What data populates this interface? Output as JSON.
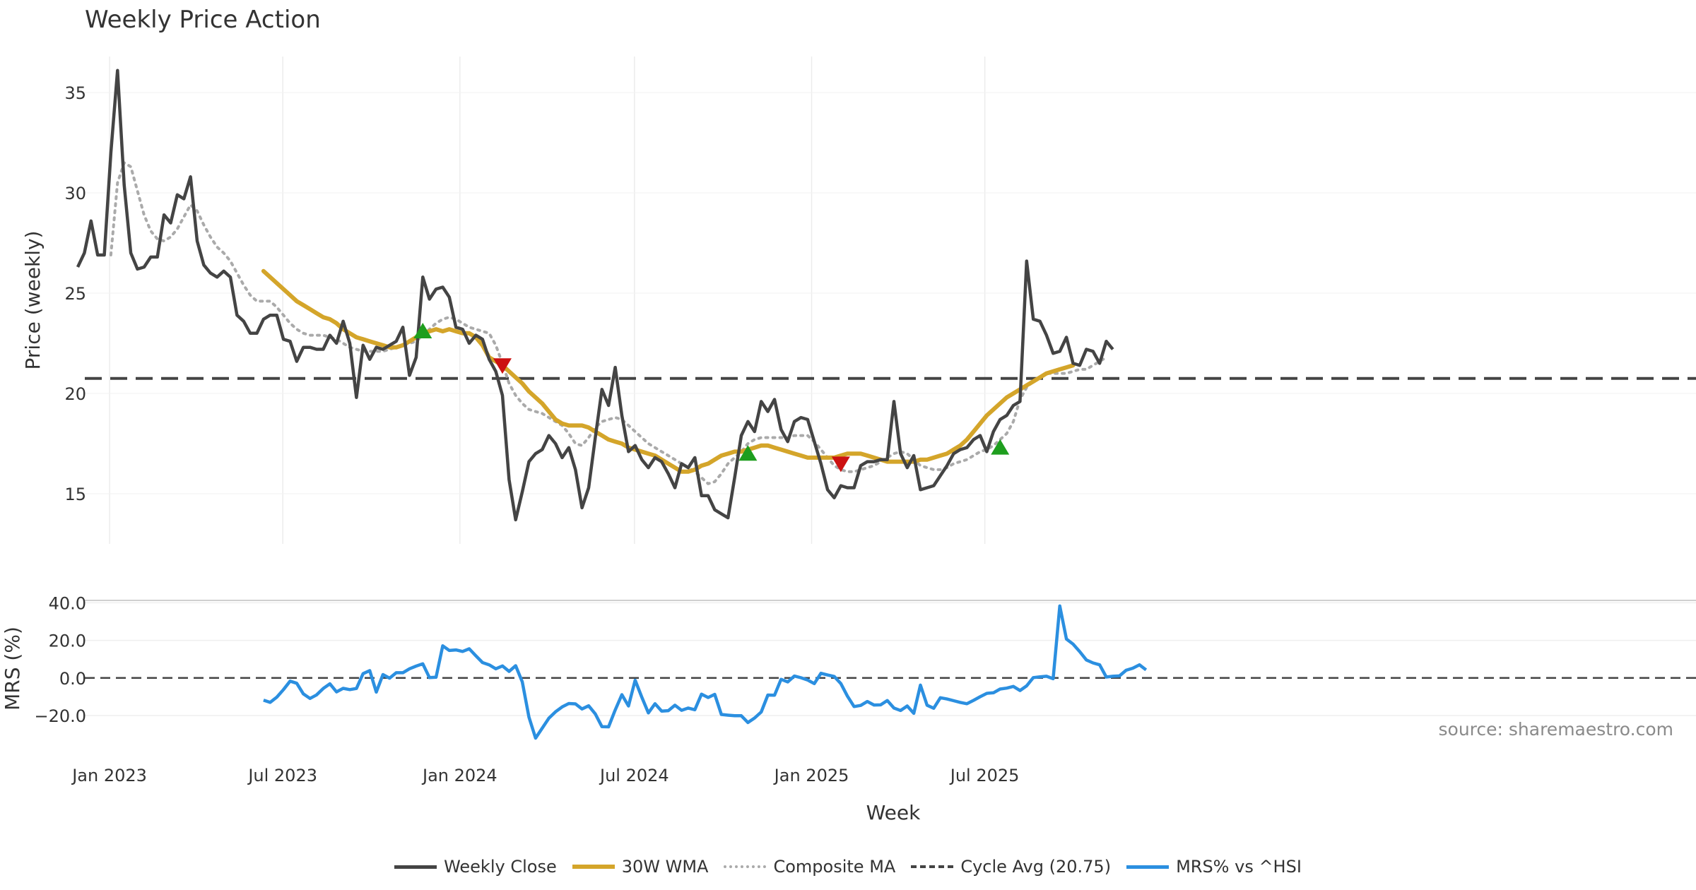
{
  "chart_data": {
    "type": "line",
    "title": "Weekly Price Action",
    "source_note": "source: sharemaestro.com",
    "xlabel": "Week",
    "x_ticks": [
      "Jan 2023",
      "Jul 2023",
      "Jan 2024",
      "Jul 2024",
      "Jan 2025",
      "Jul 2025"
    ],
    "panels": [
      {
        "name": "price",
        "ylabel": "Price (weekly)",
        "ylim": [
          12.5,
          37.5
        ],
        "y_ticks": [
          15,
          20,
          25,
          30,
          35
        ],
        "cycle_avg": 20.75,
        "series": [
          {
            "name": "Weekly Close",
            "color": "#444444",
            "values": [
              26.3,
              27.0,
              28.6,
              26.9,
              26.9,
              32.0,
              36.1,
              30.4,
              27.0,
              26.2,
              26.3,
              26.8,
              26.8,
              28.9,
              28.5,
              29.9,
              29.7,
              30.8,
              27.6,
              26.4,
              26.0,
              25.8,
              26.1,
              25.8,
              23.9,
              23.6,
              23.0,
              23.0,
              23.7,
              23.9,
              23.9,
              22.7,
              22.6,
              21.6,
              22.3,
              22.3,
              22.2,
              22.2,
              22.9,
              22.5,
              23.6,
              22.5,
              19.8,
              22.4,
              21.7,
              22.3,
              22.2,
              22.4,
              22.6,
              23.3,
              20.9,
              21.8,
              25.8,
              24.7,
              25.2,
              25.3,
              24.8,
              23.3,
              23.2,
              22.5,
              22.9,
              22.7,
              21.7,
              21.1,
              19.9,
              15.7,
              13.7,
              15.1,
              16.6,
              17.0,
              17.2,
              17.9,
              17.5,
              16.8,
              17.3,
              16.2,
              14.3,
              15.3,
              17.8,
              20.2,
              19.4,
              21.3,
              18.9,
              17.1,
              17.4,
              16.7,
              16.3,
              16.8,
              16.6,
              16.0,
              15.3,
              16.5,
              16.3,
              16.8,
              14.9,
              14.9,
              14.2,
              14.0,
              13.8,
              15.8,
              17.9,
              18.6,
              18.1,
              19.6,
              19.1,
              19.7,
              18.2,
              17.6,
              18.6,
              18.8,
              18.7,
              17.6,
              16.5,
              15.2,
              14.8,
              15.4,
              15.3,
              15.3,
              16.4,
              16.6,
              16.6,
              16.7,
              16.7,
              19.6,
              17.0,
              16.3,
              16.9,
              15.2,
              15.3,
              15.4,
              15.9,
              16.4,
              17.0,
              17.2,
              17.3,
              17.7,
              17.9,
              17.1,
              18.1,
              18.7,
              18.9,
              19.4,
              19.6,
              26.6,
              23.7,
              23.6,
              22.9,
              22.0,
              22.1,
              22.8,
              21.5,
              21.4,
              22.2,
              22.1,
              21.5,
              22.6,
              22.2
            ]
          },
          {
            "name": "30W WMA",
            "color": "#d4a52a",
            "values": [
              null,
              null,
              null,
              null,
              null,
              null,
              null,
              null,
              null,
              null,
              null,
              null,
              null,
              null,
              null,
              null,
              null,
              null,
              null,
              null,
              null,
              null,
              null,
              null,
              null,
              null,
              null,
              null,
              26.1,
              25.8,
              25.5,
              25.2,
              24.9,
              24.6,
              24.4,
              24.2,
              24.0,
              23.8,
              23.7,
              23.5,
              23.2,
              23.0,
              22.8,
              22.7,
              22.6,
              22.5,
              22.4,
              22.3,
              22.3,
              22.4,
              22.6,
              22.8,
              23.0,
              23.1,
              23.2,
              23.1,
              23.2,
              23.1,
              23.0,
              23.0,
              22.8,
              22.4,
              21.8,
              21.6,
              21.4,
              21.1,
              20.8,
              20.5,
              20.1,
              19.8,
              19.5,
              19.1,
              18.7,
              18.5,
              18.4,
              18.4,
              18.4,
              18.3,
              18.1,
              17.9,
              17.7,
              17.6,
              17.5,
              17.3,
              17.2,
              17.1,
              17.0,
              16.9,
              16.7,
              16.5,
              16.3,
              16.1,
              16.1,
              16.2,
              16.4,
              16.5,
              16.7,
              16.9,
              17.0,
              17.1,
              17.1,
              17.2,
              17.3,
              17.4,
              17.4,
              17.3,
              17.2,
              17.1,
              17.0,
              16.9,
              16.8,
              16.8,
              16.8,
              16.8,
              16.8,
              16.9,
              17.0,
              17.0,
              17.0,
              16.9,
              16.8,
              16.7,
              16.6,
              16.6,
              16.6,
              16.6,
              16.6,
              16.7,
              16.7,
              16.8,
              16.9,
              17.0,
              17.2,
              17.4,
              17.7,
              18.1,
              18.5,
              18.9,
              19.2,
              19.5,
              19.8,
              20.0,
              20.2,
              20.4,
              20.6,
              20.8,
              21.0,
              21.1,
              21.2,
              21.3,
              21.4
            ]
          },
          {
            "name": "Composite MA",
            "color": "#aaaaaa",
            "values": [
              null,
              null,
              null,
              null,
              null,
              26.9,
              30.5,
              31.5,
              31.3,
              30.1,
              28.9,
              28.1,
              27.7,
              27.6,
              27.8,
              28.2,
              28.8,
              29.4,
              29.1,
              28.4,
              27.8,
              27.3,
              27.0,
              26.6,
              26.0,
              25.4,
              24.9,
              24.6,
              24.6,
              24.6,
              24.3,
              23.9,
              23.5,
              23.2,
              23.0,
              22.9,
              22.9,
              22.9,
              22.8,
              22.7,
              22.5,
              22.3,
              22.2,
              22.1,
              22.1,
              22.1,
              22.1,
              22.2,
              22.3,
              22.4,
              22.5,
              22.6,
              22.9,
              23.2,
              23.5,
              23.7,
              23.8,
              23.7,
              23.5,
              23.3,
              23.2,
              23.1,
              23.0,
              22.4,
              21.5,
              20.5,
              19.9,
              19.5,
              19.2,
              19.1,
              19.0,
              18.8,
              18.6,
              18.4,
              18.0,
              17.5,
              17.4,
              17.8,
              18.3,
              18.6,
              18.7,
              18.8,
              18.7,
              18.4,
              18.1,
              17.8,
              17.5,
              17.3,
              17.1,
              16.9,
              16.7,
              16.5,
              16.3,
              16.1,
              15.8,
              15.5,
              15.6,
              16.0,
              16.5,
              16.8,
              17.1,
              17.5,
              17.7,
              17.8,
              17.8,
              17.8,
              17.8,
              17.8,
              17.9,
              17.9,
              17.9,
              17.6,
              17.2,
              16.8,
              16.4,
              16.2,
              16.1,
              16.1,
              16.2,
              16.3,
              16.4,
              16.6,
              16.8,
              17.0,
              17.1,
              17.0,
              16.7,
              16.4,
              16.3,
              16.2,
              16.2,
              16.3,
              16.5,
              16.6,
              16.7,
              16.9,
              17.1,
              17.2,
              17.4,
              17.7,
              18.0,
              18.6,
              19.7,
              20.3,
              20.6,
              20.8,
              21.0,
              21.0,
              21.0,
              21.0,
              21.1,
              21.2,
              21.2,
              21.4,
              21.6,
              21.8
            ]
          },
          {
            "name": "Cycle Avg (20.75)",
            "color": "#444444",
            "values": []
          }
        ],
        "markers": {
          "buy": [
            {
              "x": 52,
              "y": 23.1
            },
            {
              "x": 101,
              "y": 17.0
            },
            {
              "x": 139,
              "y": 17.3
            }
          ],
          "sell": [
            {
              "x": 64,
              "y": 21.4
            },
            {
              "x": 115,
              "y": 16.5
            }
          ]
        }
      },
      {
        "name": "mrs",
        "ylabel": "MRS (%)",
        "ylim": [
          -32,
          42
        ],
        "y_ticks": [
          -20.0,
          0.0,
          20.0,
          40.0
        ],
        "y_tick_labels": [
          "−20.0",
          "0.0",
          "20.0",
          "40.0"
        ],
        "series": [
          {
            "name": "MRS% vs ^HSI",
            "color": "#2b8fe0",
            "values": [
              null,
              null,
              null,
              null,
              null,
              null,
              null,
              null,
              null,
              null,
              null,
              null,
              null,
              null,
              null,
              null,
              null,
              null,
              null,
              null,
              null,
              null,
              null,
              null,
              null,
              null,
              null,
              null,
              -11.8,
              -13.0,
              -10.2,
              -6.2,
              -1.7,
              -2.8,
              -8.5,
              -10.9,
              -9.0,
              -5.6,
              -3.1,
              -7.4,
              -5.5,
              -6.2,
              -5.6,
              2.3,
              3.9,
              -7.5,
              1.8,
              -0.1,
              2.8,
              2.8,
              4.9,
              6.3,
              7.5,
              0.2,
              0.4,
              17.1,
              14.6,
              14.9,
              14.1,
              15.5,
              11.8,
              8.2,
              7.0,
              4.9,
              6.4,
              3.5,
              6.5,
              -2.1,
              -20.8,
              -32.0,
              -26.7,
              -21.4,
              -18.0,
              -15.4,
              -13.6,
              -13.8,
              -16.5,
              -14.8,
              -19.1,
              -25.9,
              -26.0,
              -17.0,
              -8.9,
              -14.9,
              -1.2,
              -10.2,
              -18.6,
              -13.7,
              -17.6,
              -17.4,
              -14.5,
              -17.2,
              -16.0,
              -16.9,
              -8.6,
              -10.4,
              -8.7,
              -19.4,
              -19.8,
              -20.1,
              -20.1,
              -23.7,
              -21.3,
              -18.1,
              -9.1,
              -9.2,
              -0.7,
              -2.1,
              1.0,
              0.1,
              -1.1,
              -3.0,
              2.5,
              1.6,
              0.8,
              -3.0,
              -9.7,
              -15.2,
              -14.6,
              -12.5,
              -14.4,
              -14.3,
              -12.0,
              -16.0,
              -17.3,
              -14.9,
              -18.8,
              -3.8,
              -14.5,
              -16.1,
              -10.5,
              -11.2,
              -12.1,
              -13.0,
              -13.7,
              -11.9,
              -10.0,
              -8.2,
              -7.9,
              -5.9,
              -5.4,
              -4.5,
              -6.7,
              -4.2,
              0.2,
              0.6,
              0.9,
              -0.4,
              38.3,
              20.7,
              18.0,
              14.0,
              9.6,
              8.0,
              7.0,
              0.5,
              0.9,
              1.1,
              4.1,
              5.2,
              7.0,
              4.3
            ]
          }
        ]
      }
    ],
    "legend": [
      "Weekly Close",
      "30W WMA",
      "Composite MA",
      "Cycle Avg (20.75)",
      "MRS% vs ^HSI"
    ]
  }
}
